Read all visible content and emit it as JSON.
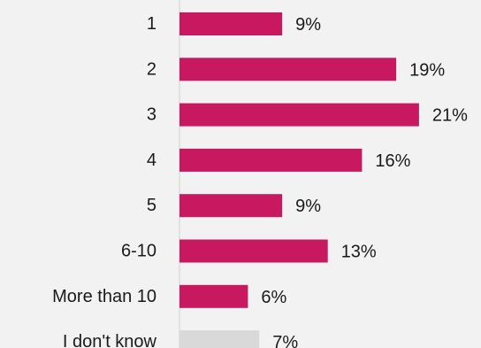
{
  "chart_data": {
    "type": "bar",
    "orientation": "horizontal",
    "categories": [
      "1",
      "2",
      "3",
      "4",
      "5",
      "6-10",
      "More than 10",
      "I don't know"
    ],
    "values": [
      9,
      19,
      21,
      16,
      9,
      13,
      6,
      7
    ],
    "value_labels": [
      "9%",
      "19%",
      "21%",
      "16%",
      "9%",
      "13%",
      "6%",
      "7%"
    ],
    "unit": "%",
    "xlim": [
      0,
      23
    ],
    "grid": false,
    "legend": "none",
    "colors": {
      "bar": "#c8185f",
      "bar_dont_know": "#d9d9d9",
      "axis": "#d0d0d0",
      "background": "#f2f2f2",
      "text": "#1a1a1a"
    }
  }
}
